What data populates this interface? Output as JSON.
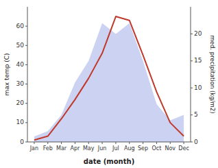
{
  "chart_data": {
    "type": "line",
    "categories": [
      "Jan",
      "Feb",
      "Mar",
      "Apr",
      "May",
      "Jun",
      "Jul",
      "Aug",
      "Sep",
      "Oct",
      "Nov",
      "Dec"
    ],
    "xlabel": "date (month)",
    "ylabel": "max temp (C)",
    "y2label": "med. precipitation (kg/m2)",
    "ylim": [
      0,
      70
    ],
    "yticks": [
      0,
      10,
      20,
      30,
      40,
      50,
      60
    ],
    "y2lim": [
      0,
      25
    ],
    "y2ticks": [
      0,
      5,
      10,
      15,
      20
    ],
    "grid": false,
    "series": [
      {
        "type": "area",
        "axis": "y2",
        "color": "#aab4e8",
        "values": [
          1,
          2,
          5,
          11,
          15,
          22,
          20,
          22,
          15,
          7,
          4,
          5
        ]
      },
      {
        "type": "line",
        "color": "#c0392b",
        "values": [
          1,
          3,
          12,
          22,
          33,
          46,
          65,
          63,
          45,
          26,
          10,
          3
        ]
      }
    ]
  }
}
